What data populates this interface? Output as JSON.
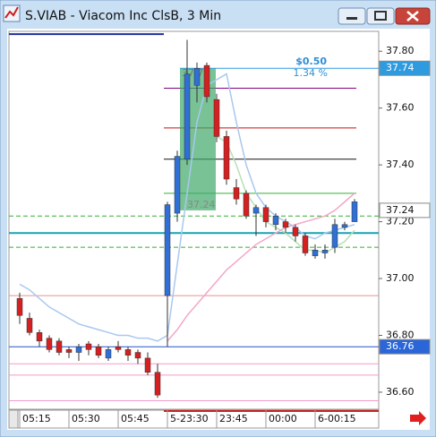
{
  "chart_data": {
    "type": "candlestick",
    "title": "S.VIAB - Viacom Inc ClsB, 3 Min",
    "categories": [
      "05:15",
      null,
      null,
      null,
      null,
      "05:30",
      null,
      null,
      null,
      null,
      "05:45",
      null,
      null,
      null,
      null,
      "5-23:30",
      null,
      null,
      null,
      null,
      "23:45",
      null,
      null,
      null,
      null,
      "00:00",
      null,
      null,
      null,
      null,
      "6-00:15",
      null,
      null,
      null,
      null
    ],
    "open": [
      36.93,
      36.86,
      36.81,
      36.79,
      36.78,
      36.75,
      36.74,
      36.77,
      36.76,
      36.72,
      36.76,
      36.75,
      36.74,
      36.72,
      36.67,
      36.94,
      37.23,
      37.42,
      37.68,
      37.75,
      37.63,
      37.5,
      37.32,
      37.3,
      37.23,
      37.25,
      37.19,
      37.2,
      37.18,
      37.15,
      37.08,
      37.09,
      37.11,
      37.18,
      37.2
    ],
    "high": [
      36.95,
      36.88,
      36.82,
      36.8,
      36.79,
      36.76,
      36.77,
      36.78,
      36.77,
      36.76,
      36.78,
      36.76,
      36.75,
      36.74,
      36.7,
      37.27,
      37.45,
      37.84,
      37.76,
      37.76,
      37.65,
      37.52,
      37.35,
      37.31,
      37.26,
      37.26,
      37.23,
      37.21,
      37.19,
      37.16,
      37.12,
      37.12,
      37.21,
      37.2,
      37.28
    ],
    "low": [
      36.84,
      36.8,
      36.76,
      36.74,
      36.73,
      36.72,
      36.71,
      36.73,
      36.72,
      36.71,
      36.74,
      36.71,
      36.7,
      36.66,
      36.58,
      36.76,
      37.2,
      37.4,
      37.62,
      37.62,
      37.48,
      37.33,
      37.26,
      37.21,
      37.15,
      37.18,
      37.17,
      37.16,
      37.13,
      37.08,
      37.07,
      37.07,
      37.09,
      37.17,
      37.2
    ],
    "close": [
      36.87,
      36.81,
      36.78,
      36.75,
      36.74,
      36.74,
      36.76,
      36.75,
      36.73,
      36.75,
      36.75,
      36.73,
      36.72,
      36.67,
      36.59,
      37.26,
      37.43,
      37.72,
      37.74,
      37.64,
      37.5,
      37.35,
      37.28,
      37.22,
      37.25,
      37.2,
      37.22,
      37.18,
      37.15,
      37.09,
      37.1,
      37.1,
      37.19,
      37.19,
      37.27
    ],
    "up_color": "#2f6fd6",
    "down_color": "#d42020",
    "series": [
      {
        "color": "#a9c8ee",
        "values": [
          36.98,
          36.96,
          36.93,
          36.9,
          36.88,
          36.86,
          36.84,
          36.83,
          36.82,
          36.81,
          36.8,
          36.8,
          36.79,
          36.79,
          36.78,
          36.8,
          37.05,
          37.3,
          37.55,
          37.68,
          37.7,
          37.72,
          37.55,
          37.4,
          37.3,
          37.25,
          37.22,
          37.2,
          37.18,
          37.15,
          37.14,
          37.16,
          37.17,
          37.18,
          37.19
        ]
      },
      {
        "color": "#b6e0b6",
        "values": [
          null,
          null,
          null,
          null,
          null,
          null,
          null,
          null,
          null,
          null,
          null,
          null,
          null,
          null,
          null,
          null,
          null,
          null,
          null,
          null,
          37.5,
          37.48,
          37.4,
          37.3,
          37.25,
          37.2,
          37.18,
          37.16,
          37.13,
          37.1,
          37.1,
          37.09,
          37.11,
          37.13,
          37.17
        ]
      },
      {
        "color": "#f4a6c8",
        "values": [
          null,
          null,
          null,
          null,
          null,
          null,
          null,
          null,
          null,
          null,
          null,
          null,
          null,
          null,
          null,
          36.78,
          36.82,
          36.87,
          36.91,
          36.95,
          36.99,
          37.03,
          37.06,
          37.09,
          37.12,
          37.14,
          37.16,
          37.18,
          37.19,
          37.2,
          37.21,
          37.22,
          37.24,
          37.27,
          37.3
        ]
      }
    ],
    "levels": [
      {
        "value": 37.22,
        "color": "#33b033",
        "style": "dashed"
      },
      {
        "value": 37.16,
        "color": "#1aa3b0",
        "style": "thick"
      },
      {
        "value": 37.11,
        "color": "#33b033",
        "style": "dashed"
      },
      {
        "value": 36.94,
        "color": "#e89090",
        "style": "solid"
      },
      {
        "value": 36.76,
        "color": "#2255cc",
        "style": "solid"
      },
      {
        "value": 36.7,
        "color": "#f49ac8",
        "style": "solid"
      },
      {
        "value": 36.66,
        "color": "#f49ac8",
        "style": "solid"
      },
      {
        "value": 36.57,
        "color": "#f49ac8",
        "style": "solid"
      }
    ],
    "prior_levels": [
      {
        "value": 37.86,
        "color": "#1a2fa0",
        "style": "thick"
      }
    ],
    "session_levels": [
      {
        "value": 37.67,
        "color": "#800080",
        "style": "solid"
      },
      {
        "value": 37.53,
        "color": "#cc1111",
        "style": "solid"
      },
      {
        "value": 37.42,
        "color": "#111111",
        "style": "solid"
      },
      {
        "value": 37.3,
        "color": "#33b033",
        "style": "solid"
      }
    ],
    "measure": {
      "start": 37.24,
      "end": 37.74,
      "change_label": "$0.50",
      "percent_label": "1.34 %",
      "color": "#3ea86a"
    },
    "price_labels": [
      {
        "value": 37.74,
        "color": "#2e9be0"
      },
      {
        "value": 37.24,
        "color": "#ffffff"
      },
      {
        "value": 36.76,
        "color": "#2a66d8"
      }
    ],
    "ylim": [
      36.54,
      37.87
    ],
    "yticks": [
      {
        "value": 36.6,
        "label": "36.60"
      },
      {
        "value": 36.8,
        "label": "36.80"
      },
      {
        "value": 37.0,
        "label": "37.00"
      },
      {
        "value": 37.2,
        "label": "37.20"
      },
      {
        "value": 37.4,
        "label": "37.40"
      },
      {
        "value": 37.6,
        "label": "37.60"
      },
      {
        "value": 37.8,
        "label": "37.80"
      }
    ]
  }
}
